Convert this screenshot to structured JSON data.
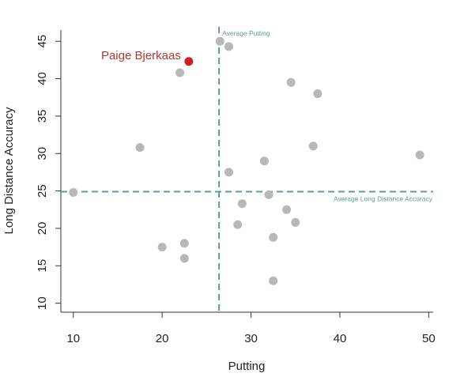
{
  "chart_data": {
    "type": "scatter",
    "title": "",
    "xlabel": "Putting",
    "ylabel": "Long Distance Accuracy",
    "xlim": [
      8.6,
      50.5
    ],
    "ylim": [
      8.8,
      46.5
    ],
    "xticks": [
      10,
      20,
      30,
      40,
      50
    ],
    "yticks": [
      10,
      15,
      20,
      25,
      30,
      35,
      40,
      45
    ],
    "points": [
      {
        "x": 10.0,
        "y": 24.8
      },
      {
        "x": 17.5,
        "y": 30.8
      },
      {
        "x": 20.0,
        "y": 17.5
      },
      {
        "x": 22.0,
        "y": 40.8
      },
      {
        "x": 22.5,
        "y": 18.0
      },
      {
        "x": 22.5,
        "y": 16.0
      },
      {
        "x": 26.5,
        "y": 45.0
      },
      {
        "x": 27.5,
        "y": 44.3
      },
      {
        "x": 27.5,
        "y": 27.5
      },
      {
        "x": 28.5,
        "y": 20.5
      },
      {
        "x": 29.0,
        "y": 23.3
      },
      {
        "x": 31.5,
        "y": 29.0
      },
      {
        "x": 32.0,
        "y": 24.5
      },
      {
        "x": 32.5,
        "y": 18.8
      },
      {
        "x": 32.5,
        "y": 13.0
      },
      {
        "x": 34.0,
        "y": 22.5
      },
      {
        "x": 34.5,
        "y": 39.5
      },
      {
        "x": 35.0,
        "y": 20.8
      },
      {
        "x": 37.0,
        "y": 31.0
      },
      {
        "x": 37.5,
        "y": 38.0
      },
      {
        "x": 49.0,
        "y": 29.8
      }
    ],
    "highlight": {
      "x": 23.0,
      "y": 42.3,
      "label": "Paige Bjerkaas"
    },
    "reference_lines": {
      "vertical": {
        "x": 26.4,
        "label": "Average Putting"
      },
      "horizontal": {
        "y": 24.9,
        "label": "Average Long Distance Accuracy"
      }
    },
    "colors": {
      "point": "#b8b8b8",
      "highlight": "#cc2222",
      "highlight_label": "#b03a2e",
      "reference": "#5b9e99",
      "axis": "#333333",
      "text": "#222222"
    }
  }
}
